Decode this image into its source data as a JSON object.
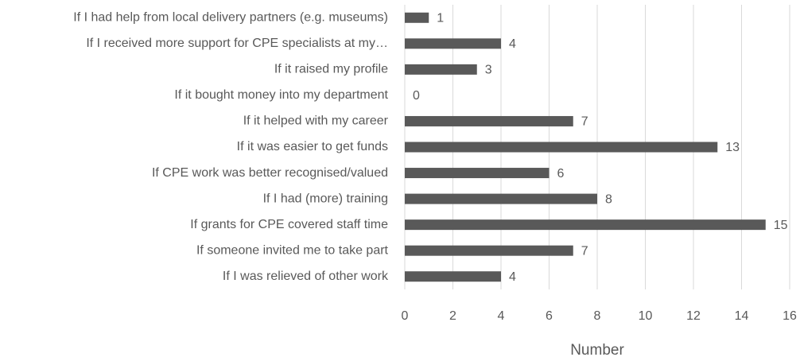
{
  "chart_data": {
    "type": "barh",
    "x_label": "Number",
    "categories": [
      "If I had help from local delivery partners (e.g. museums)",
      "If I received more support for CPE specialists at my…",
      "If it raised my profile",
      "If it bought money into my department",
      "If it helped with my career",
      "If it was easier to get funds",
      "If CPE work was better recognised/valued",
      "If I had (more) training",
      "If grants for CPE covered staff time",
      "If someone invited me to take part",
      "If I was relieved of other work"
    ],
    "values": [
      1,
      4,
      3,
      0,
      7,
      13,
      6,
      8,
      15,
      7,
      4
    ],
    "color": "#595959",
    "xlim": [
      0,
      16
    ],
    "xticks": [
      0,
      2,
      4,
      6,
      8,
      10,
      12,
      14,
      16
    ],
    "grid": true
  }
}
